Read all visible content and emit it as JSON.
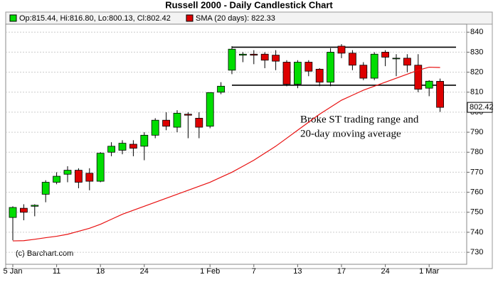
{
  "chart_data": {
    "type": "candlestick",
    "title": "Russell 2000 - Daily Candlestick Chart",
    "legend": [
      {
        "label": "Op:815.44, Hi:816.80, Lo:800.13, Cl:802.42",
        "color": "#00dd00"
      },
      {
        "label": "SMA (20 days): 822.33",
        "color": "#dd0000"
      }
    ],
    "credit": "(c) Barchart.com",
    "annotation": [
      "Broke ST trading range and",
      "20-day moving average"
    ],
    "categories": [
      "5 Jan",
      null,
      null,
      null,
      "11",
      null,
      null,
      null,
      "18",
      null,
      null,
      null,
      "24",
      null,
      null,
      null,
      null,
      null,
      "1 Feb",
      null,
      null,
      null,
      "7",
      null,
      null,
      null,
      "13",
      null,
      null,
      null,
      "17",
      null,
      null,
      null,
      "24",
      null,
      null,
      null,
      "1 Mar",
      null
    ],
    "open": [
      747.4,
      752,
      753,
      759,
      765,
      769,
      771,
      769.5,
      765.5,
      780,
      781,
      784,
      783,
      788.5,
      796,
      792.5,
      799,
      797,
      793,
      810,
      821,
      828.5,
      829,
      829,
      828.5,
      825,
      814,
      825,
      821.5,
      815,
      833,
      829.5,
      823.5,
      817,
      830,
      827,
      827,
      823.5,
      812,
      815.44
    ],
    "high": [
      753,
      754,
      754,
      766,
      770,
      773,
      772,
      772,
      780,
      785,
      786,
      786,
      790,
      797,
      800,
      801,
      800,
      800,
      810,
      815,
      833,
      830,
      831,
      830,
      831,
      826,
      826,
      826,
      822,
      832,
      834,
      831,
      825,
      830,
      831,
      829,
      829,
      829,
      816,
      816.8
    ],
    "low": [
      736,
      746,
      748,
      755,
      764,
      765,
      762,
      761,
      765,
      778,
      779,
      778,
      776,
      787,
      791,
      790,
      787,
      787,
      792,
      809,
      819,
      825,
      824,
      822,
      821,
      813,
      812,
      818,
      813,
      813,
      827,
      821,
      816,
      816,
      823,
      818,
      820,
      810,
      808,
      800.13
    ],
    "close": [
      752.4,
      750,
      753.5,
      765,
      768,
      771,
      765,
      765.5,
      779.5,
      783,
      784.5,
      782,
      788.5,
      796,
      793,
      799.5,
      798.5,
      792.5,
      809.8,
      813,
      831.5,
      829,
      828.5,
      826,
      825.5,
      814,
      825,
      820.5,
      815,
      830,
      829.5,
      823.5,
      817,
      829,
      827.5,
      827,
      823.5,
      811.5,
      815.5,
      802.42
    ],
    "up_color": "#00dd00",
    "down_color": "#dd0000",
    "sma": {
      "color": "#e81010",
      "values": [
        735.7,
        735.8,
        736.5,
        737.3,
        738,
        739,
        740.5,
        742,
        744,
        746.5,
        749,
        751,
        753,
        755,
        757,
        759,
        761,
        763,
        765,
        767.5,
        770,
        773,
        776,
        779.5,
        783,
        787,
        791,
        795,
        799,
        802.5,
        806,
        808.5,
        811,
        813,
        815,
        817,
        819,
        821,
        822.5,
        822.33
      ]
    },
    "hlines": [
      832.5,
      813.5
    ],
    "ylim": [
      724,
      844
    ],
    "yticks": [
      730,
      740,
      750,
      760,
      770,
      780,
      790,
      800,
      810,
      820,
      830,
      840
    ],
    "grid": true
  }
}
